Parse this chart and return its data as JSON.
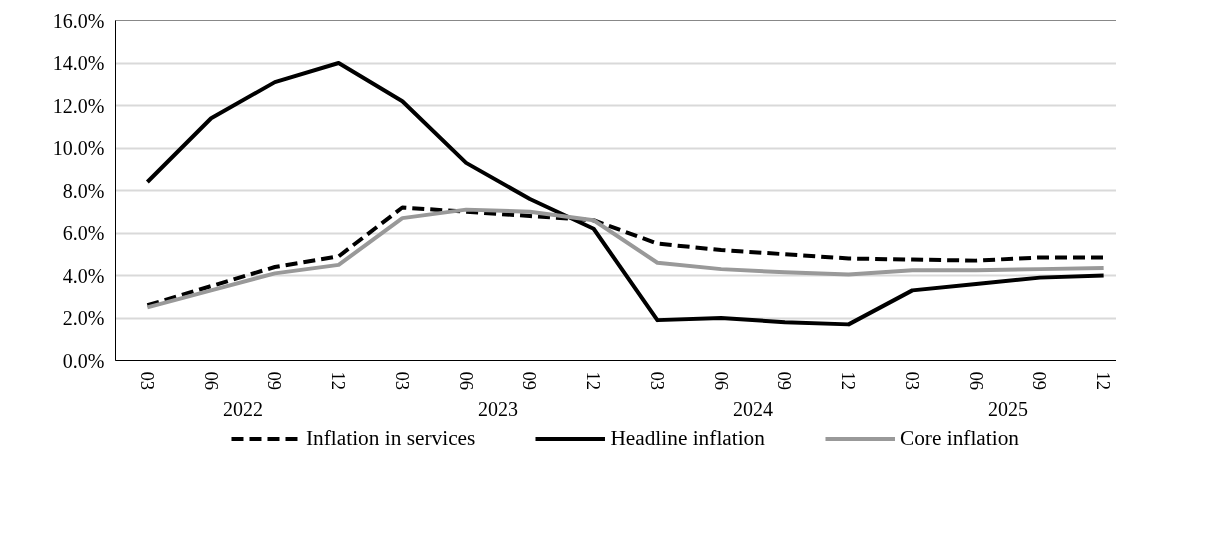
{
  "chart_data": {
    "type": "line",
    "categories": [
      "03",
      "06",
      "09",
      "12",
      "03",
      "06",
      "09",
      "12",
      "03",
      "06",
      "09",
      "12",
      "03",
      "06",
      "09",
      "12"
    ],
    "annotations": [
      "2022",
      "2023",
      "2024",
      "2025"
    ],
    "series": [
      {
        "name": "Inflation in services",
        "color": "#000000",
        "line_style": "dashed",
        "values": [
          2.6,
          3.5,
          4.4,
          4.9,
          7.2,
          7.0,
          6.8,
          6.6,
          5.5,
          5.2,
          5.0,
          4.8,
          4.75,
          4.7,
          4.85,
          4.85
        ]
      },
      {
        "name": "Headline inflation",
        "color": "#000000",
        "line_style": "solid",
        "values": [
          8.4,
          11.4,
          13.1,
          14.0,
          12.2,
          9.3,
          7.6,
          6.2,
          1.9,
          2.0,
          1.8,
          1.7,
          3.3,
          3.6,
          3.9,
          4.0
        ]
      },
      {
        "name": "Core inflation",
        "color": "#999999",
        "line_style": "solid",
        "values": [
          2.5,
          3.3,
          4.1,
          4.5,
          6.7,
          7.1,
          7.0,
          6.6,
          4.6,
          4.3,
          4.15,
          4.05,
          4.25,
          4.25,
          4.3,
          4.35
        ]
      }
    ],
    "ylim": [
      0,
      16
    ],
    "yticks": [
      {
        "value": 0,
        "label": "0.0%"
      },
      {
        "value": 2,
        "label": "2.0%"
      },
      {
        "value": 4,
        "label": "4.0%"
      },
      {
        "value": 6,
        "label": "6.0%"
      },
      {
        "value": 8,
        "label": "8.0%"
      },
      {
        "value": 10,
        "label": "10.0%"
      },
      {
        "value": 12,
        "label": "12.0%"
      },
      {
        "value": 14,
        "label": "14.0%"
      },
      {
        "value": 16,
        "label": "16.0%"
      }
    ],
    "grid": "y",
    "legend": "bottom",
    "marker": "none"
  }
}
